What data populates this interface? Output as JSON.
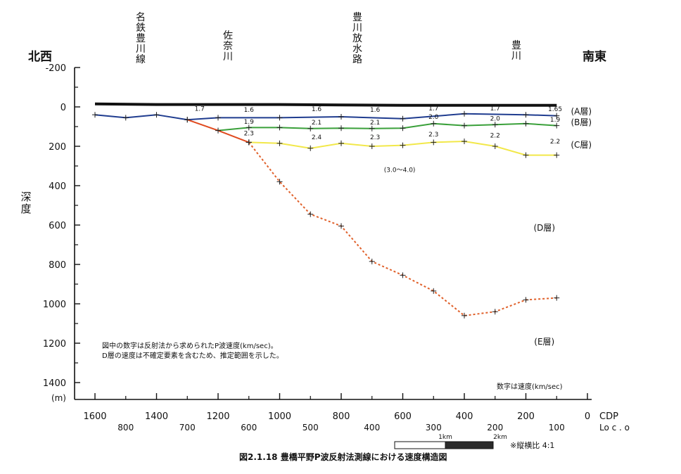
{
  "chart_data": {
    "type": "line",
    "title": "図2.1.18  豊橋平野P波反射法測線における速度構造図",
    "direction_left": "北西",
    "direction_right": "南東",
    "place_labels": [
      {
        "text": "名鉄豊川線",
        "cdp": 1400
      },
      {
        "text": "佐奈川",
        "cdp": 1200
      },
      {
        "text": "豊川放水路",
        "cdp": 800
      },
      {
        "text": "豊川",
        "cdp": 200
      }
    ],
    "ylabel": "深度",
    "yunit": "(m)",
    "ylim": [
      -200,
      1400
    ],
    "yticks": [
      "-200",
      "0",
      "200",
      "400",
      "600",
      "800",
      "1000",
      "1200",
      "1400"
    ],
    "xlim": [
      1600,
      0
    ],
    "xticks_cdp": [
      "1600",
      "1400",
      "1200",
      "1000",
      "800",
      "600",
      "400",
      "200",
      "0"
    ],
    "xticks_loc": [
      "800",
      "700",
      "600",
      "500",
      "400",
      "300",
      "200",
      "100"
    ],
    "xlabel_cdp": "CDP",
    "xlabel_loc": "Lo c        . o",
    "series": [
      {
        "key": "surface",
        "color": "#111111",
        "dashed": false,
        "x": [
          1600,
          1400,
          1200,
          1000,
          800,
          600,
          400,
          200,
          100
        ],
        "y": [
          -15,
          -12,
          -12,
          -12,
          -10,
          -8,
          -8,
          -8,
          -8
        ]
      },
      {
        "key": "A",
        "color": "#1f3c8f",
        "dashed": false,
        "x": [
          1600,
          1500,
          1400,
          1300,
          1200,
          1000,
          800,
          600,
          400,
          200,
          100
        ],
        "y": [
          40,
          55,
          40,
          65,
          55,
          55,
          50,
          60,
          35,
          40,
          45
        ]
      },
      {
        "key": "B",
        "color": "#3aa03a",
        "dashed": false,
        "x": [
          1200,
          1100,
          1000,
          900,
          800,
          700,
          600,
          500,
          400,
          300,
          200,
          100
        ],
        "y": [
          120,
          105,
          105,
          110,
          108,
          110,
          108,
          85,
          95,
          90,
          85,
          95
        ]
      },
      {
        "key": "C",
        "color": "#f2e84a",
        "dashed": false,
        "x": [
          1100,
          1000,
          900,
          800,
          700,
          600,
          500,
          400,
          300,
          200,
          100
        ],
        "y": [
          180,
          185,
          210,
          185,
          200,
          195,
          180,
          175,
          200,
          245,
          245
        ]
      },
      {
        "key": "D_solid",
        "color": "#e04a1f",
        "dashed": false,
        "x": [
          1300,
          1200,
          1100
        ],
        "y": [
          65,
          120,
          180
        ]
      },
      {
        "key": "D",
        "color": "#e0602a",
        "dashed": true,
        "x": [
          1100,
          1000,
          900,
          800,
          700,
          600,
          500,
          400,
          300,
          200,
          100
        ],
        "y": [
          180,
          380,
          545,
          605,
          785,
          855,
          935,
          1060,
          1040,
          980,
          970
        ]
      }
    ],
    "velocity_labels": [
      {
        "text": "1.7",
        "cdp": 1260,
        "depth": 20
      },
      {
        "text": "1.6",
        "cdp": 1100,
        "depth": 25
      },
      {
        "text": "1.6",
        "cdp": 880,
        "depth": 22
      },
      {
        "text": "1.6",
        "cdp": 690,
        "depth": 25
      },
      {
        "text": "1.7",
        "cdp": 500,
        "depth": 18
      },
      {
        "text": "1.7",
        "cdp": 300,
        "depth": 18
      },
      {
        "text": "1.65",
        "cdp": 105,
        "depth": 22
      },
      {
        "text": "1.9",
        "cdp": 1100,
        "depth": 85
      },
      {
        "text": "2.1",
        "cdp": 880,
        "depth": 90
      },
      {
        "text": "2.1",
        "cdp": 690,
        "depth": 90
      },
      {
        "text": "2.0",
        "cdp": 500,
        "depth": 60
      },
      {
        "text": "2.0",
        "cdp": 300,
        "depth": 70
      },
      {
        "text": "1.9",
        "cdp": 105,
        "depth": 75
      },
      {
        "text": "2.3",
        "cdp": 1100,
        "depth": 145
      },
      {
        "text": "2.4",
        "cdp": 880,
        "depth": 165
      },
      {
        "text": "2.3",
        "cdp": 690,
        "depth": 165
      },
      {
        "text": "2.3",
        "cdp": 500,
        "depth": 150
      },
      {
        "text": "2.2",
        "cdp": 300,
        "depth": 155
      },
      {
        "text": "2.2",
        "cdp": 105,
        "depth": 185
      },
      {
        "text": "(3.0〜4.0)",
        "cdp": 610,
        "depth": 330
      }
    ],
    "layer_labels": [
      {
        "text": "(A層)",
        "cdp": 20,
        "depth": 20
      },
      {
        "text": "(B層)",
        "cdp": 20,
        "depth": 75
      },
      {
        "text": "(C層)",
        "cdp": 20,
        "depth": 190
      },
      {
        "text": "(D層)",
        "cdp": 140,
        "depth": 610
      },
      {
        "text": "(E層)",
        "cdp": 140,
        "depth": 1190
      }
    ],
    "notes": [
      "図中の数字は反射法から求められたP波速度(km/sec)。",
      "D層の速度は不確定要素を含むため、推定範囲を示した。"
    ],
    "velocity_unit_note": "数字は速度(km/sec)",
    "scale_bar": {
      "label1": "1km",
      "label2": "2km",
      "ratio": "※縦横比  4:1"
    }
  }
}
